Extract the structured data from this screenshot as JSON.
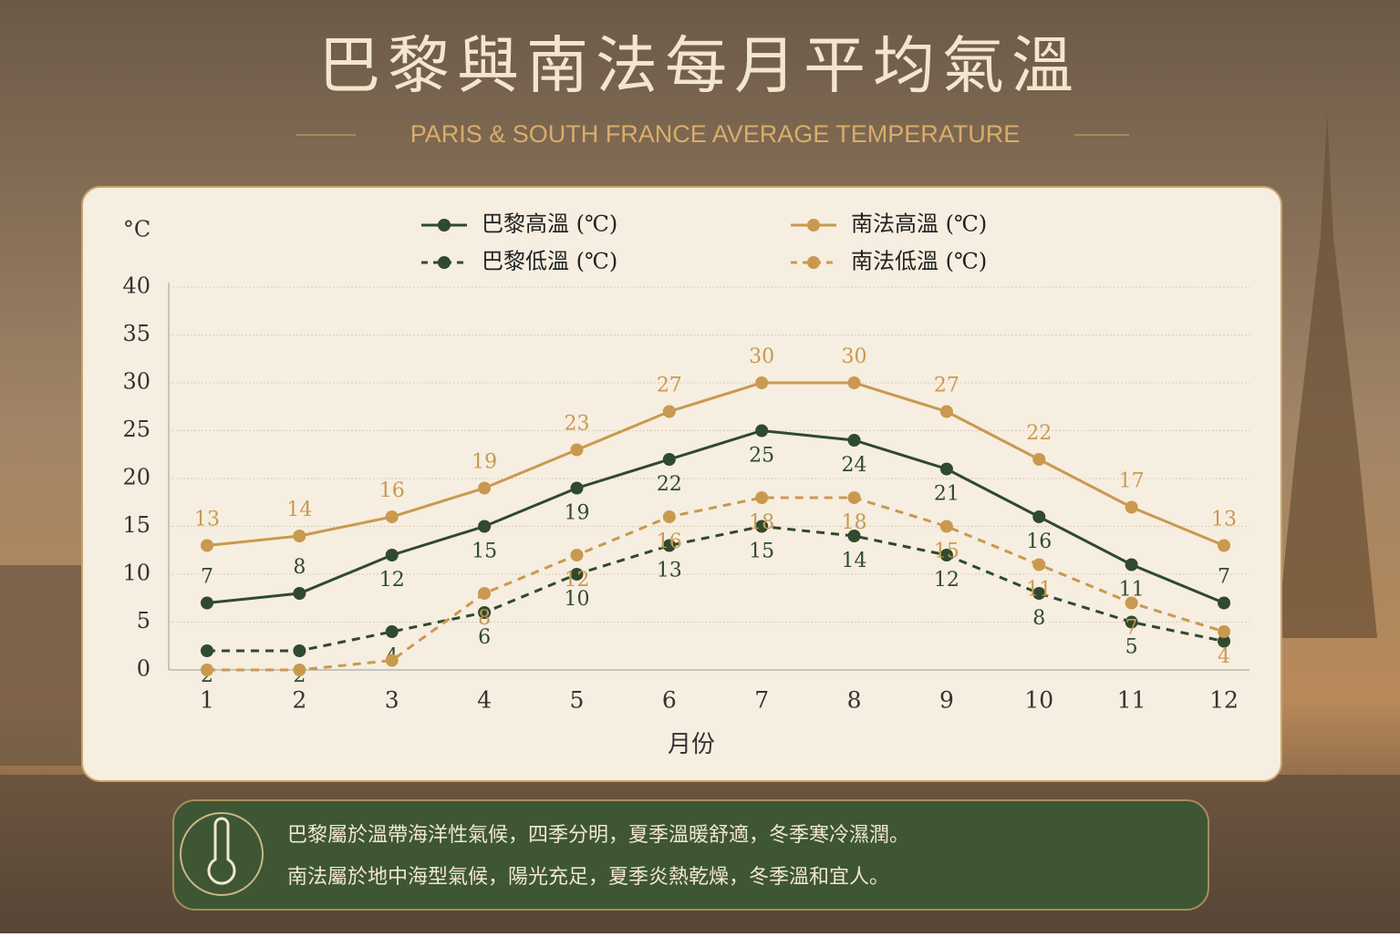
{
  "chart_data": {
    "type": "line",
    "title": "巴黎與南法每月平均氣溫",
    "subtitle": "PARIS & SOUTH FRANCE AVERAGE TEMPERATURE",
    "ylabel": "°C",
    "xlabel": "月份",
    "categories": [
      "1",
      "2",
      "3",
      "4",
      "5",
      "6",
      "7",
      "8",
      "9",
      "10",
      "11",
      "12"
    ],
    "ylim": [
      0,
      40
    ],
    "yticks": [
      0,
      5,
      10,
      15,
      20,
      25,
      30,
      35,
      40
    ],
    "grid": true,
    "series": [
      {
        "name": "巴黎高溫 (℃)",
        "color": "#2f4a2e",
        "dashed": false,
        "values": [
          7,
          8,
          12,
          15,
          19,
          22,
          25,
          24,
          21,
          16,
          11,
          7
        ]
      },
      {
        "name": "南法高溫 (℃)",
        "color": "#c9994f",
        "dashed": false,
        "values": [
          13,
          14,
          16,
          19,
          23,
          27,
          30,
          30,
          27,
          22,
          17,
          13
        ]
      },
      {
        "name": "巴黎低溫 (℃)",
        "color": "#2f4a2e",
        "dashed": true,
        "values": [
          2,
          2,
          4,
          6,
          10,
          13,
          15,
          14,
          12,
          8,
          5,
          3
        ],
        "value_labels": [
          "2",
          "2",
          "4",
          "6",
          "10",
          "13",
          "15",
          "14",
          "12",
          "8",
          "5",
          null
        ]
      },
      {
        "name": "南法低溫 (℃)",
        "color": "#c9994f",
        "dashed": true,
        "values": [
          0,
          0,
          1,
          8,
          12,
          16,
          18,
          18,
          15,
          11,
          7,
          4
        ],
        "value_labels": [
          null,
          null,
          null,
          "8",
          "12",
          "16",
          "18",
          "18",
          "15",
          "11",
          "7",
          "4"
        ]
      }
    ]
  },
  "notes": [
    "巴黎屬於溫帶海洋性氣候，四季分明，夏季溫暖舒適，冬季寒冷濕潤。",
    "南法屬於地中海型氣候，陽光充足，夏季炎熱乾燥，冬季溫和宜人。"
  ]
}
